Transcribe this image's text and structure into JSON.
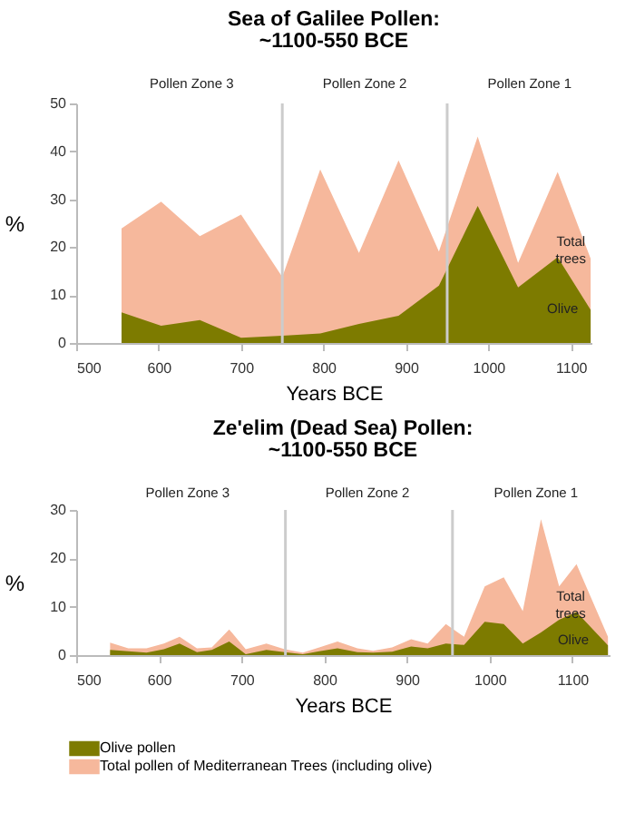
{
  "chart_data": [
    {
      "type": "area",
      "title": "Sea of Galilee Pollen: ~1100-550 BCE",
      "xlabel": "Years BCE",
      "ylabel": "%",
      "x": [
        555,
        603,
        650,
        700,
        750,
        796,
        843,
        891,
        940,
        987,
        1036,
        1084,
        1124
      ],
      "series": [
        {
          "color": "#7d7b00",
          "values": [
            6.4,
            3.6,
            4.8,
            1.1,
            1.5,
            2.0,
            4.0,
            5.7,
            12.0,
            28.6,
            11.6,
            17.9,
            6.9
          ]
        },
        {
          "color": "#f6b89c",
          "values": [
            23.9,
            29.5,
            22.3,
            26.8,
            13.8,
            36.2,
            18.8,
            38.1,
            19.1,
            43.1,
            16.7,
            35.7,
            17.6
          ]
        }
      ],
      "xlim": [
        500,
        1125
      ],
      "xticks": [
        500,
        600,
        700,
        800,
        900,
        1000,
        1100
      ],
      "ylim": [
        0,
        50
      ],
      "yticks": [
        0,
        10,
        20,
        30,
        40,
        50
      ],
      "ref_lines": [
        {
          "axis": "x",
          "value": 750,
          "color": "#cccccc"
        },
        {
          "axis": "x",
          "value": 950,
          "color": "#cccccc"
        }
      ],
      "annotations": [
        "Pollen Zone 3",
        "Pollen Zone 2",
        "Pollen Zone 1",
        "Total trees",
        "Olive"
      ],
      "grid": false
    },
    {
      "type": "area",
      "title": "Ze'elim (Dead Sea) Pollen: ~1100-550 BCE",
      "xlabel": "Years BCE",
      "ylabel": "%",
      "x": [
        541,
        563,
        585,
        606,
        625,
        646,
        664,
        685,
        705,
        730,
        752,
        774,
        794,
        816,
        840,
        859,
        882,
        905,
        925,
        947,
        969,
        994,
        1017,
        1040,
        1062,
        1084,
        1105,
        1143
      ],
      "series": [
        {
          "name": "Olive pollen",
          "color": "#7d7b00",
          "values": [
            1.1,
            0.8,
            0.5,
            1.2,
            2.4,
            0.6,
            1.1,
            2.8,
            0.2,
            1.1,
            0.6,
            0.2,
            0.8,
            1.4,
            0.6,
            0.5,
            0.7,
            1.8,
            1.4,
            2.4,
            2.1,
            6.9,
            6.4,
            2.4,
            4.7,
            7.3,
            8.9,
            2.0
          ]
        },
        {
          "name": "Total pollen of Mediterranean Trees (including olive)",
          "color": "#f6b89c",
          "values": [
            2.6,
            1.4,
            1.4,
            2.4,
            3.8,
            1.4,
            1.6,
            5.3,
            1.2,
            2.4,
            1.2,
            0.5,
            1.6,
            2.8,
            1.4,
            0.9,
            1.6,
            3.3,
            2.4,
            6.4,
            3.8,
            14.2,
            16.1,
            9.1,
            28.1,
            14.2,
            18.8,
            3.8
          ]
        }
      ],
      "xlim": [
        500,
        1145
      ],
      "xticks": [
        500,
        600,
        700,
        800,
        900,
        1000,
        1100
      ],
      "ylim": [
        0,
        30
      ],
      "yticks": [
        0,
        10,
        20,
        30
      ],
      "ref_lines": [
        {
          "axis": "x",
          "value": 753,
          "color": "#cccccc"
        },
        {
          "axis": "x",
          "value": 955,
          "color": "#cccccc"
        }
      ],
      "annotations": [
        "Pollen Zone 3",
        "Pollen Zone 2",
        "Pollen Zone 1",
        "Total trees",
        "Olive"
      ],
      "grid": false,
      "legend": "bottom"
    }
  ]
}
